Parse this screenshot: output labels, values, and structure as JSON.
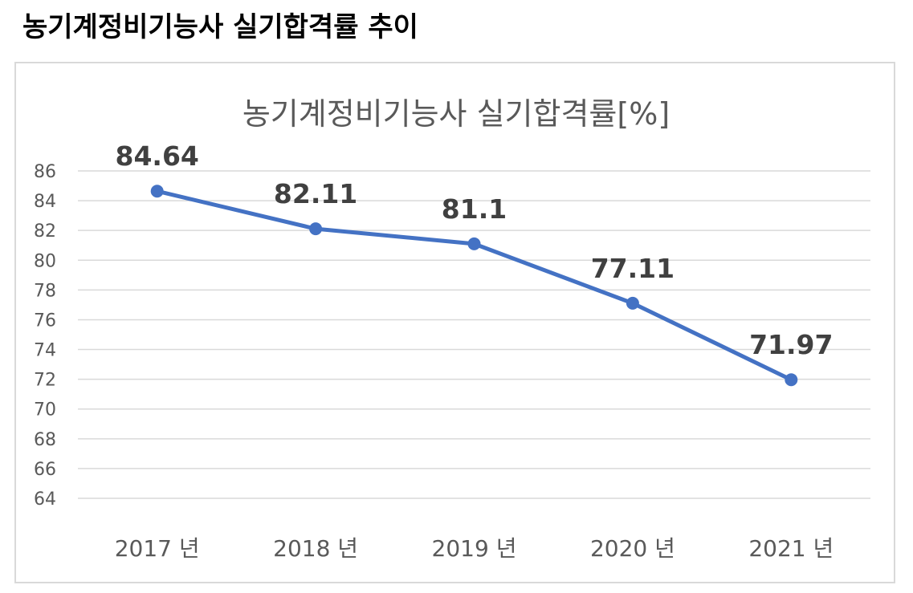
{
  "page_heading": "농기계정비기능사 실기합격률 추이",
  "colors": {
    "series": "#4472c4",
    "gridline": "#d9d9d9",
    "axis_text": "#595959",
    "data_label": "#404040",
    "frame_border": "#d9d9d9"
  },
  "chart_data": {
    "type": "line",
    "title": "농기계정비기능사 실기합격률[%]",
    "categories": [
      "2017 년",
      "2018 년",
      "2019 년",
      "2020 년",
      "2021 년"
    ],
    "series": [
      {
        "values": [
          84.64,
          82.11,
          81.1,
          77.11,
          71.97
        ],
        "data_labels": [
          "84.64",
          "82.11",
          "81.1",
          "77.11",
          "71.97"
        ],
        "marker": "circle"
      }
    ],
    "ylim": [
      64,
      86
    ],
    "ytick_step": 2,
    "yticks": [
      "64",
      "66",
      "68",
      "70",
      "72",
      "74",
      "76",
      "78",
      "80",
      "82",
      "84",
      "86"
    ],
    "xlabel": "",
    "ylabel": "",
    "grid": "horizontal",
    "legend": "none"
  }
}
